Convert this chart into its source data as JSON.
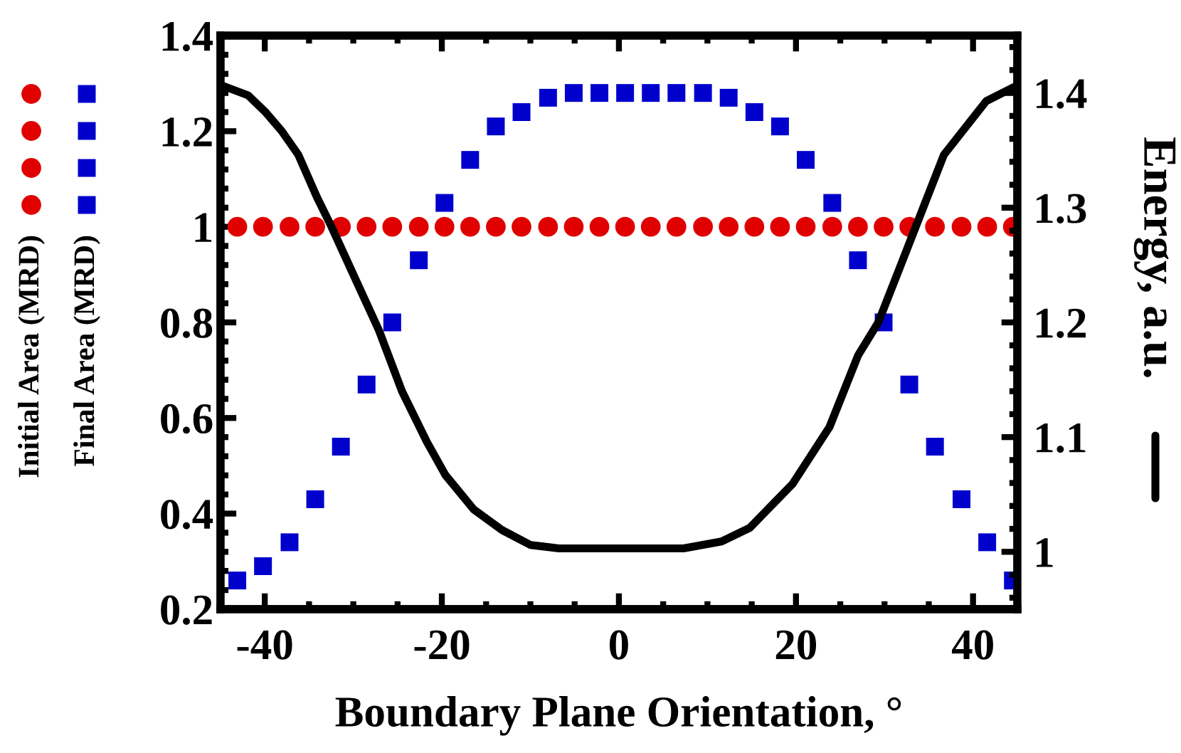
{
  "chart_data": {
    "type": "scatter",
    "xlabel": "Boundary Plane Orientation, °",
    "x": [
      -43.1,
      -40.2,
      -37.2,
      -34.3,
      -31.4,
      -28.5,
      -25.6,
      -22.6,
      -19.7,
      -16.8,
      -13.9,
      -11.0,
      -8.0,
      -5.1,
      -2.2,
      0.7,
      3.6,
      6.5,
      9.5,
      12.4,
      15.3,
      18.2,
      21.1,
      24.1,
      27.0,
      29.9,
      32.8,
      35.7,
      38.7,
      41.6,
      44.5
    ],
    "xlim": [
      -45,
      45
    ],
    "xticks": [
      -40,
      -20,
      0,
      20,
      40
    ],
    "ylim": [
      0.2,
      1.4
    ],
    "yticks": [
      0.2,
      0.4,
      0.6,
      0.8,
      1,
      1.2,
      1.4
    ],
    "y2lim": [
      0.95,
      1.45
    ],
    "y2ticks": [
      1,
      1.1,
      1.2,
      1.3,
      1.4
    ],
    "y2label": "Energy, a.u.",
    "legend": "left",
    "grid": false,
    "series": [
      {
        "name": "Initial Area (MRD)",
        "marker": "circle",
        "color": "#e00000",
        "values": [
          1,
          1,
          1,
          1,
          1,
          1,
          1,
          1,
          1,
          1,
          1,
          1,
          1,
          1,
          1,
          1,
          1,
          1,
          1,
          1,
          1,
          1,
          1,
          1,
          1,
          1,
          1,
          1,
          1,
          1,
          1
        ]
      },
      {
        "name": "Final Area (MRD)",
        "marker": "square",
        "color": "#0000cc",
        "values": [
          0.26,
          0.29,
          0.34,
          0.43,
          0.54,
          0.67,
          0.8,
          0.93,
          1.05,
          1.14,
          1.21,
          1.24,
          1.27,
          1.28,
          1.28,
          1.28,
          1.28,
          1.28,
          1.28,
          1.27,
          1.24,
          1.21,
          1.14,
          1.05,
          0.93,
          0.8,
          0.67,
          0.54,
          0.43,
          0.34,
          0.26
        ]
      },
      {
        "type": "line",
        "axis": "y2",
        "color": "#000000",
        "line_style": "solid",
        "marker": "none",
        "x": [
          -45,
          -41.9,
          -40,
          -38.1,
          -36.2,
          -34.1,
          -32.5,
          -29.3,
          -27.1,
          -24.5,
          -21.7,
          -19.6,
          -16.4,
          -13.2,
          -10,
          -6.8,
          0,
          7.3,
          11.6,
          14.8,
          19.6,
          23.8,
          27,
          29.3,
          32.5,
          36.7,
          41.5,
          44.6
        ],
        "values": [
          1.407,
          1.398,
          1.384,
          1.367,
          1.346,
          1.309,
          1.284,
          1.23,
          1.193,
          1.14,
          1.096,
          1.067,
          1.037,
          1.019,
          1.006,
          1.003,
          1.003,
          1.003,
          1.009,
          1.021,
          1.059,
          1.109,
          1.171,
          1.2,
          1.263,
          1.346,
          1.393,
          1.405
        ]
      }
    ]
  }
}
